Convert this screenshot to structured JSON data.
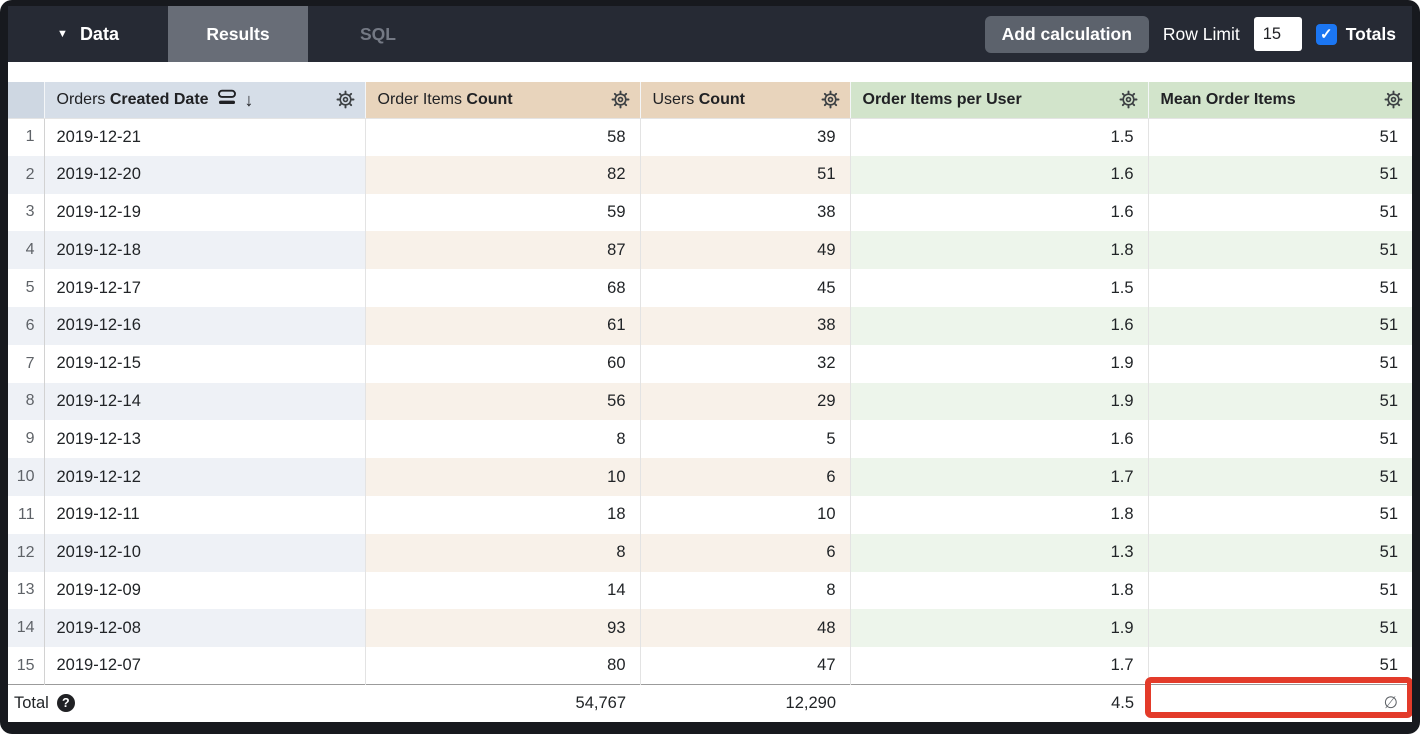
{
  "topbar": {
    "data_label": "Data",
    "tabs": [
      {
        "label": "Results",
        "active": true
      },
      {
        "label": "SQL",
        "active": false
      }
    ],
    "add_calculation_label": "Add calculation",
    "row_limit_label": "Row Limit",
    "row_limit_value": "15",
    "totals_label": "Totals",
    "totals_checked": true
  },
  "icons": {
    "dropdown": "▼",
    "sort_desc": "↓",
    "check": "✓",
    "help": "?"
  },
  "table": {
    "columns": [
      {
        "type": "dimension",
        "prefix": "Orders ",
        "name": "Created Date",
        "sorted": "desc",
        "icons": [
          "fill-icon",
          "sort-desc-icon",
          "gear-icon"
        ]
      },
      {
        "type": "measure",
        "prefix": "Order Items ",
        "name": "Count",
        "icons": [
          "gear-icon"
        ]
      },
      {
        "type": "measure",
        "prefix": "Users ",
        "name": "Count",
        "icons": [
          "gear-icon"
        ]
      },
      {
        "type": "calculation",
        "prefix": "",
        "name": "Order Items per User",
        "icons": [
          "gear-icon"
        ]
      },
      {
        "type": "calculation",
        "prefix": "",
        "name": "Mean Order Items",
        "icons": [
          "gear-icon"
        ]
      }
    ],
    "rows": [
      {
        "n": "1",
        "date": "2019-12-21",
        "order_items_count": "58",
        "users_count": "39",
        "order_items_per_user": "1.5",
        "mean_order_items": "51"
      },
      {
        "n": "2",
        "date": "2019-12-20",
        "order_items_count": "82",
        "users_count": "51",
        "order_items_per_user": "1.6",
        "mean_order_items": "51"
      },
      {
        "n": "3",
        "date": "2019-12-19",
        "order_items_count": "59",
        "users_count": "38",
        "order_items_per_user": "1.6",
        "mean_order_items": "51"
      },
      {
        "n": "4",
        "date": "2019-12-18",
        "order_items_count": "87",
        "users_count": "49",
        "order_items_per_user": "1.8",
        "mean_order_items": "51"
      },
      {
        "n": "5",
        "date": "2019-12-17",
        "order_items_count": "68",
        "users_count": "45",
        "order_items_per_user": "1.5",
        "mean_order_items": "51"
      },
      {
        "n": "6",
        "date": "2019-12-16",
        "order_items_count": "61",
        "users_count": "38",
        "order_items_per_user": "1.6",
        "mean_order_items": "51"
      },
      {
        "n": "7",
        "date": "2019-12-15",
        "order_items_count": "60",
        "users_count": "32",
        "order_items_per_user": "1.9",
        "mean_order_items": "51"
      },
      {
        "n": "8",
        "date": "2019-12-14",
        "order_items_count": "56",
        "users_count": "29",
        "order_items_per_user": "1.9",
        "mean_order_items": "51"
      },
      {
        "n": "9",
        "date": "2019-12-13",
        "order_items_count": "8",
        "users_count": "5",
        "order_items_per_user": "1.6",
        "mean_order_items": "51"
      },
      {
        "n": "10",
        "date": "2019-12-12",
        "order_items_count": "10",
        "users_count": "6",
        "order_items_per_user": "1.7",
        "mean_order_items": "51"
      },
      {
        "n": "11",
        "date": "2019-12-11",
        "order_items_count": "18",
        "users_count": "10",
        "order_items_per_user": "1.8",
        "mean_order_items": "51"
      },
      {
        "n": "12",
        "date": "2019-12-10",
        "order_items_count": "8",
        "users_count": "6",
        "order_items_per_user": "1.3",
        "mean_order_items": "51"
      },
      {
        "n": "13",
        "date": "2019-12-09",
        "order_items_count": "14",
        "users_count": "8",
        "order_items_per_user": "1.8",
        "mean_order_items": "51"
      },
      {
        "n": "14",
        "date": "2019-12-08",
        "order_items_count": "93",
        "users_count": "48",
        "order_items_per_user": "1.9",
        "mean_order_items": "51"
      },
      {
        "n": "15",
        "date": "2019-12-07",
        "order_items_count": "80",
        "users_count": "47",
        "order_items_per_user": "1.7",
        "mean_order_items": "51"
      }
    ],
    "totals": {
      "label": "Total",
      "order_items_count": "54,767",
      "users_count": "12,290",
      "order_items_per_user": "4.5",
      "mean_order_items": "∅"
    }
  },
  "annotation": {
    "type": "red-highlight-box",
    "target": "totals-mean-order-items-cell",
    "color": "#e33b2a"
  },
  "colors": {
    "topbar_bg": "#262a34",
    "active_tab_bg": "#686d77",
    "button_bg": "#5c626c",
    "checkbox_blue": "#1b76f2",
    "header_dimension_bg": "#d6dee8",
    "header_measure_bg": "#e8d4bc",
    "header_calculation_bg": "#d2e4cb",
    "stripe_dimension": "#eef1f6",
    "stripe_measure": "#f8f1e9",
    "stripe_calculation": "#edf5eb",
    "annotation_red": "#e33b2a"
  }
}
